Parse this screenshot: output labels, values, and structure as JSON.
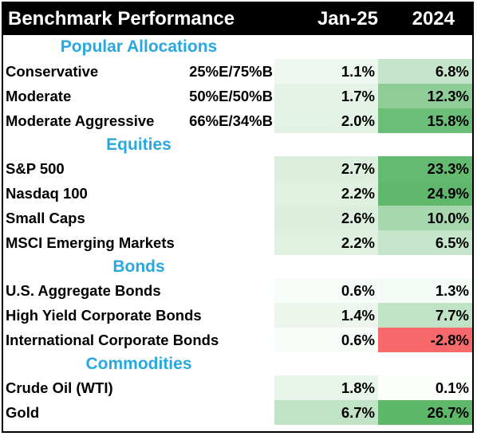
{
  "header": {
    "title": "Benchmark Performance",
    "col1": "Jan-25",
    "col2": "2024"
  },
  "sections": {
    "popular": {
      "title": "Popular Allocations",
      "rows": [
        {
          "name": "Conservative",
          "alloc": "25%E/75%B",
          "jan": "1.1%",
          "y2024": "6.8%",
          "jan_color": "#eef7ef",
          "y2024_color": "#c4e5c9"
        },
        {
          "name": "Moderate",
          "alloc": "50%E/50%B",
          "jan": "1.7%",
          "y2024": "12.3%",
          "jan_color": "#e5f3e7",
          "y2024_color": "#8fcd98"
        },
        {
          "name": "Moderate Aggressive",
          "alloc": "66%E/34%B",
          "jan": "2.0%",
          "y2024": "15.8%",
          "jan_color": "#e2f2e4",
          "y2024_color": "#6bbe77"
        }
      ]
    },
    "equities": {
      "title": "Equities",
      "rows": [
        {
          "name": "S&P 500",
          "alloc": "",
          "jan": "2.7%",
          "y2024": "23.3%",
          "jan_color": "#dcefdf",
          "y2024_color": "#63ba70"
        },
        {
          "name": "Nasdaq 100",
          "alloc": "",
          "jan": "2.2%",
          "y2024": "24.9%",
          "jan_color": "#e0f1e2",
          "y2024_color": "#5fb86c"
        },
        {
          "name": "Small Caps",
          "alloc": "",
          "jan": "2.6%",
          "y2024": "10.0%",
          "jan_color": "#dcefdf",
          "y2024_color": "#a6d7ad"
        },
        {
          "name": "MSCI Emerging Markets",
          "alloc": "",
          "jan": "2.2%",
          "y2024": "6.5%",
          "jan_color": "#e0f1e2",
          "y2024_color": "#c6e6cb"
        }
      ]
    },
    "bonds": {
      "title": "Bonds",
      "rows": [
        {
          "name": "U.S. Aggregate Bonds",
          "alloc": "",
          "jan": "0.6%",
          "y2024": "1.3%",
          "jan_color": "#f8fcf9",
          "y2024_color": "#f4faf5"
        },
        {
          "name": "High Yield Corporate Bonds",
          "alloc": "",
          "jan": "1.4%",
          "y2024": "7.7%",
          "jan_color": "#ecf6ed",
          "y2024_color": "#bfe3c4"
        },
        {
          "name": "International Corporate Bonds",
          "alloc": "",
          "jan": "0.6%",
          "y2024": "-2.8%",
          "jan_color": "#f8fcf9",
          "y2024_color": "#f8696b"
        }
      ]
    },
    "commodities": {
      "title": "Commodities",
      "rows": [
        {
          "name": "Crude Oil (WTI)",
          "alloc": "",
          "jan": "1.8%",
          "y2024": "0.1%",
          "jan_color": "#e8f5ea",
          "y2024_color": "#fcfefc"
        },
        {
          "name": "Gold",
          "alloc": "",
          "jan": "6.7%",
          "y2024": "26.7%",
          "jan_color": "#c1e4c6",
          "y2024_color": "#5db86a"
        }
      ]
    }
  }
}
